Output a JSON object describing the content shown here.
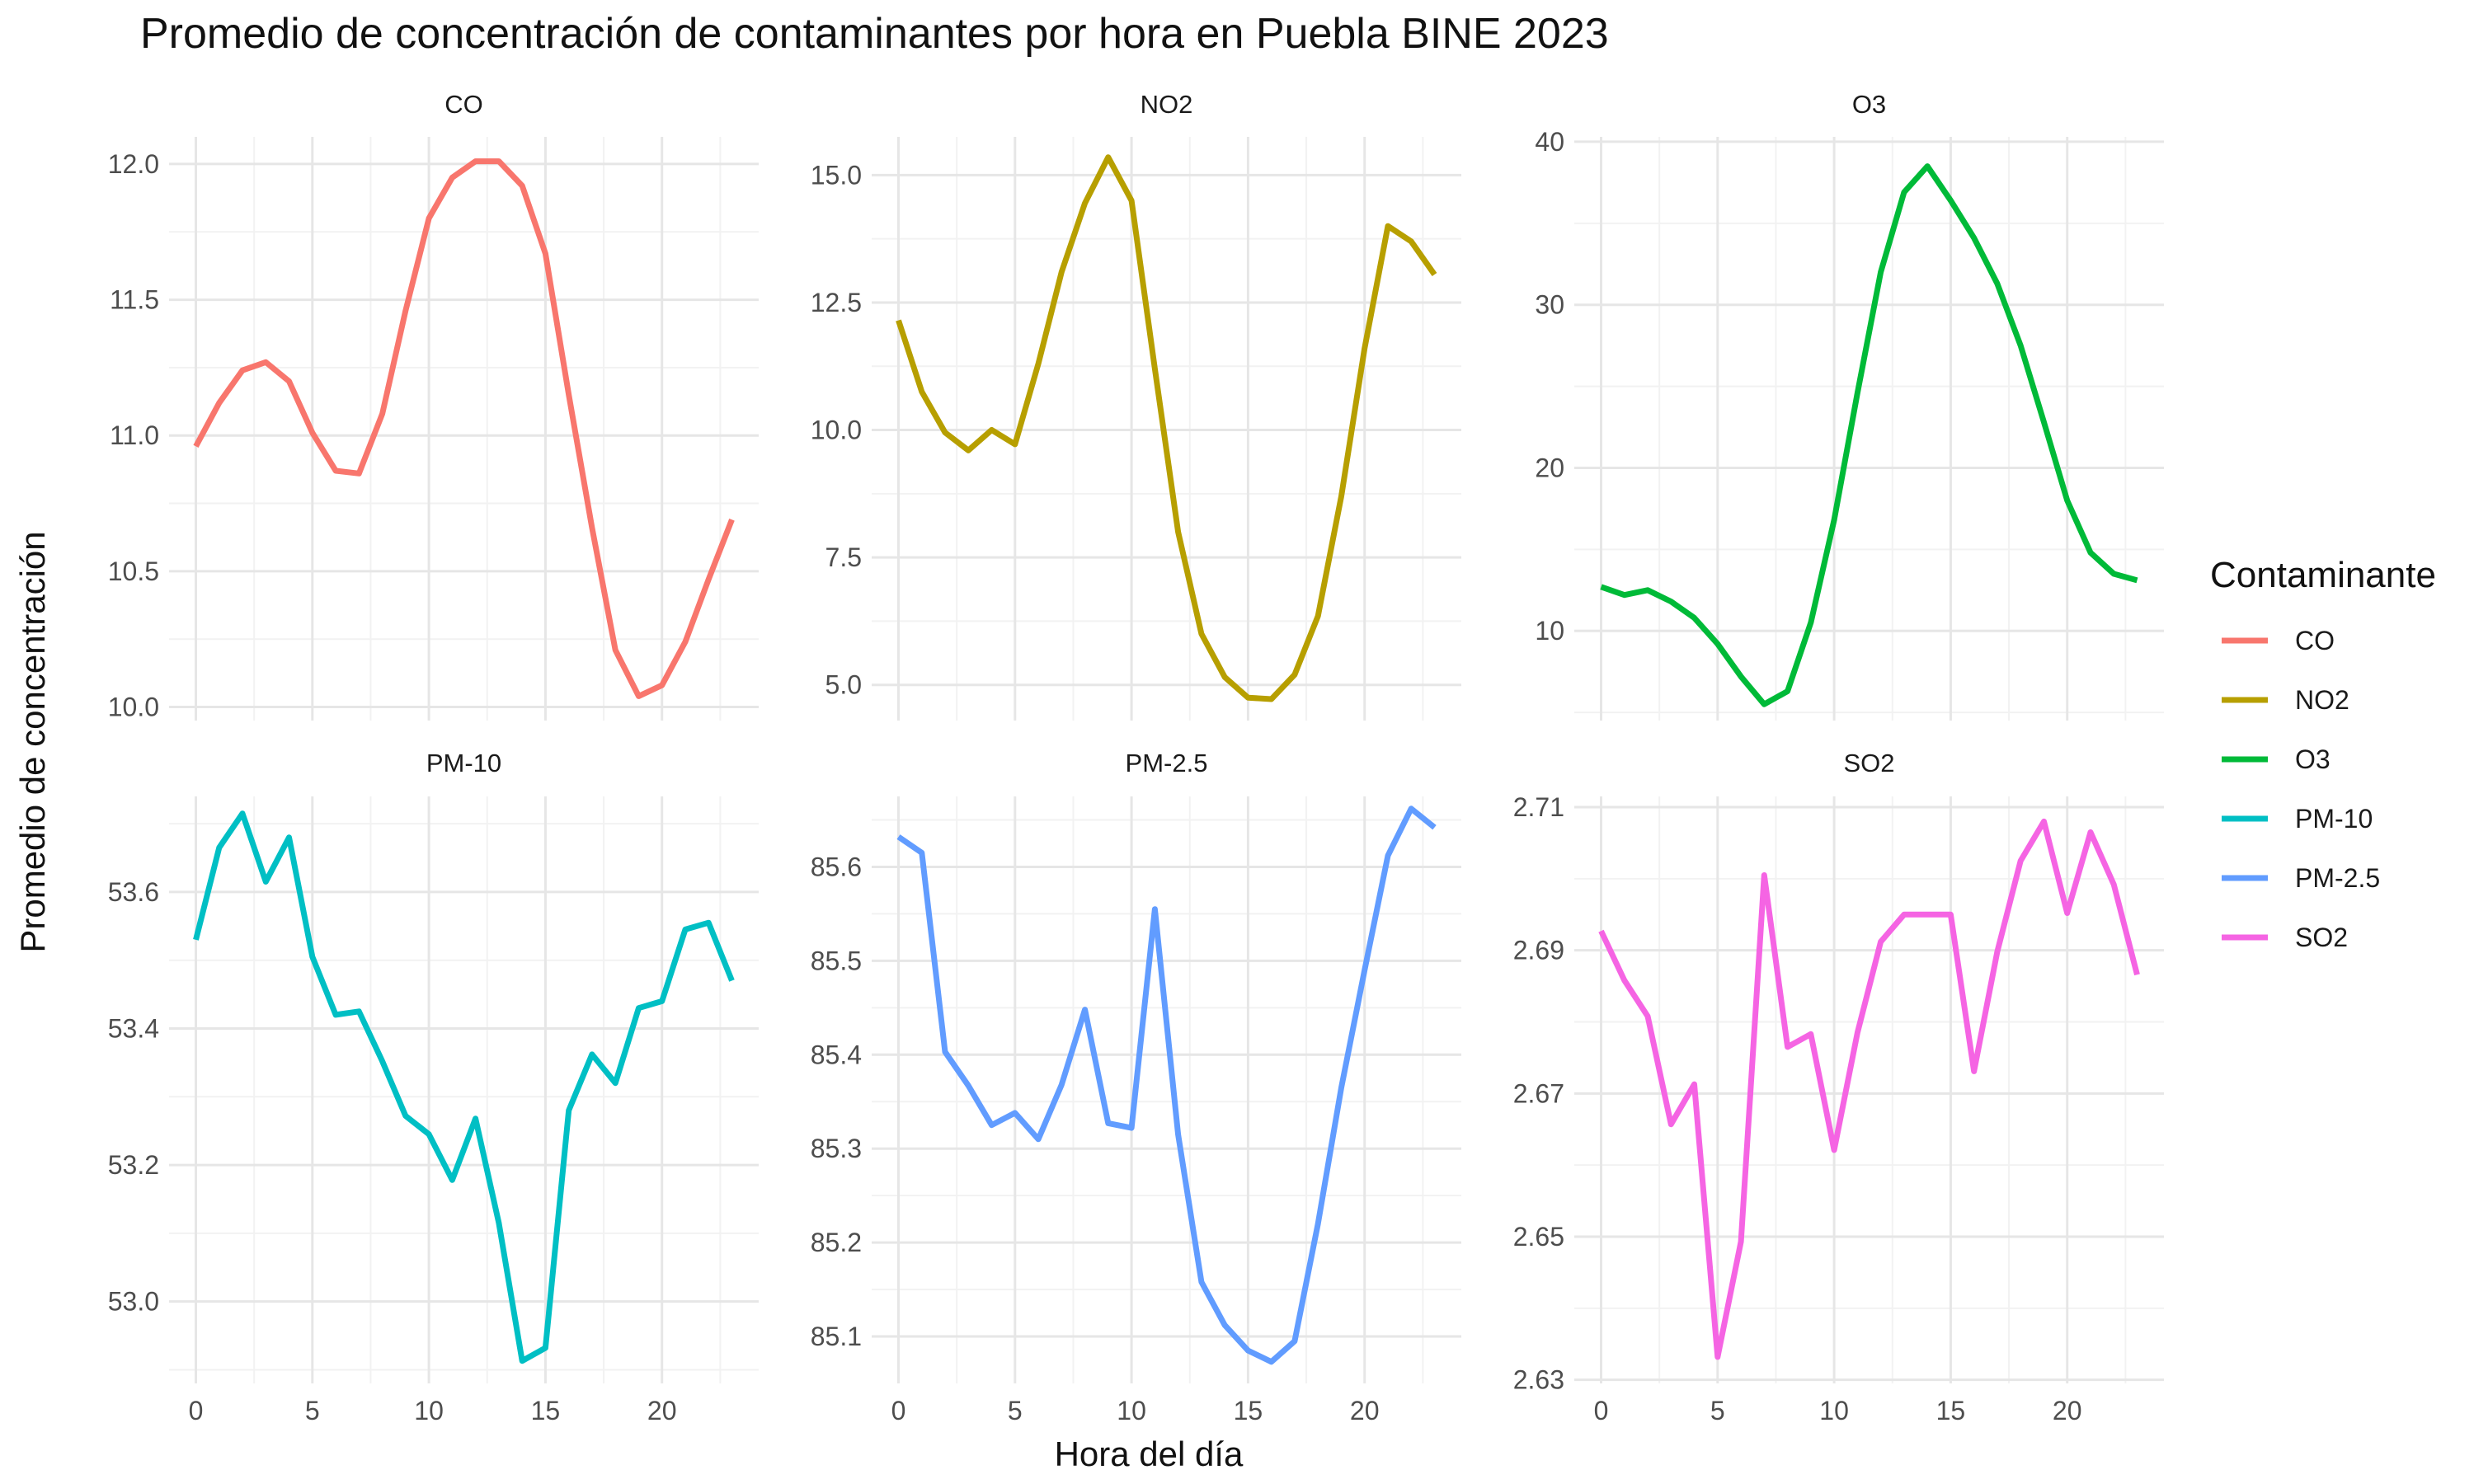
{
  "chart_data": {
    "type": "line",
    "title": "Promedio de concentración de contaminantes por hora en Puebla BINE 2023",
    "xlabel": "Hora del día",
    "ylabel": "Promedio de concentración",
    "grid": true,
    "legend": {
      "title": "Contaminante",
      "placement": "right"
    },
    "x_ticks": [
      0,
      5,
      10,
      15,
      20
    ],
    "xlim": [
      -1.15,
      24.15
    ],
    "x": [
      0,
      1,
      2,
      3,
      4,
      5,
      6,
      7,
      8,
      9,
      10,
      11,
      12,
      13,
      14,
      15,
      16,
      17,
      18,
      19,
      20,
      21,
      22,
      23
    ],
    "panels": [
      {
        "name": "CO",
        "color": "#F8766D",
        "ylim": [
          9.95,
          12.1
        ],
        "y_ticks": [
          10.0,
          10.5,
          11.0,
          11.5,
          12.0
        ],
        "y_tick_labels": [
          "10.0",
          "10.5",
          "11.0",
          "11.5",
          "12.0"
        ],
        "values": [
          10.96,
          11.12,
          11.24,
          11.27,
          11.2,
          11.01,
          10.87,
          10.86,
          11.08,
          11.46,
          11.8,
          11.95,
          12.01,
          12.01,
          11.92,
          11.67,
          11.15,
          10.66,
          10.21,
          10.04,
          10.08,
          10.24,
          10.47,
          10.69
        ]
      },
      {
        "name": "NO2",
        "color": "#B79F00",
        "ylim": [
          4.3,
          15.75
        ],
        "y_ticks": [
          5.0,
          7.5,
          10.0,
          12.5,
          15.0
        ],
        "y_tick_labels": [
          "5.0",
          "7.5",
          "10.0",
          "12.5",
          "15.0"
        ],
        "values": [
          12.15,
          10.75,
          9.95,
          9.6,
          10.0,
          9.72,
          11.3,
          13.1,
          14.45,
          15.35,
          14.5,
          11.2,
          8.0,
          6.0,
          5.15,
          4.75,
          4.72,
          5.2,
          6.35,
          8.7,
          11.6,
          14.0,
          13.7,
          13.05
        ]
      },
      {
        "name": "O3",
        "color": "#00BA38",
        "ylim": [
          4.5,
          40.3
        ],
        "y_ticks": [
          10,
          20,
          30,
          40
        ],
        "y_tick_labels": [
          "10",
          "20",
          "30",
          "40"
        ],
        "values": [
          12.7,
          12.2,
          12.5,
          11.8,
          10.8,
          9.2,
          7.2,
          5.5,
          6.3,
          10.5,
          16.8,
          24.6,
          32.0,
          36.9,
          38.5,
          36.4,
          34.1,
          31.3,
          27.5,
          22.8,
          18.0,
          14.8,
          13.5,
          13.1
        ]
      },
      {
        "name": "PM-10",
        "color": "#00BFC4",
        "ylim": [
          52.88,
          53.74
        ],
        "y_ticks": [
          53.0,
          53.2,
          53.4,
          53.6
        ],
        "y_tick_labels": [
          "53.0",
          "53.2",
          "53.4",
          "53.6"
        ],
        "values": [
          53.53,
          53.665,
          53.715,
          53.615,
          53.68,
          53.505,
          53.42,
          53.425,
          53.352,
          53.272,
          53.245,
          53.178,
          53.268,
          53.115,
          52.913,
          52.932,
          53.28,
          53.362,
          53.32,
          53.43,
          53.44,
          53.545,
          53.555,
          53.47
        ]
      },
      {
        "name": "PM-2.5",
        "color": "#619CFF",
        "ylim": [
          85.05,
          85.675
        ],
        "y_ticks": [
          85.1,
          85.2,
          85.3,
          85.4,
          85.5,
          85.6
        ],
        "y_tick_labels": [
          "85.1",
          "85.2",
          "85.3",
          "85.4",
          "85.5",
          "85.6"
        ],
        "values": [
          85.632,
          85.615,
          85.403,
          85.367,
          85.325,
          85.338,
          85.31,
          85.368,
          85.448,
          85.327,
          85.322,
          85.555,
          85.315,
          85.158,
          85.112,
          85.085,
          85.073,
          85.095,
          85.22,
          85.365,
          85.49,
          85.612,
          85.662,
          85.642
        ]
      },
      {
        "name": "SO2",
        "color": "#F564E3",
        "ylim": [
          2.6295,
          2.7115
        ],
        "y_ticks": [
          2.63,
          2.65,
          2.67,
          2.69,
          2.71
        ],
        "y_tick_labels": [
          "2.63",
          "2.65",
          "2.67",
          "2.69",
          "2.71"
        ],
        "values": [
          2.6927,
          2.6858,
          2.6808,
          2.6657,
          2.6713,
          2.6332,
          2.6493,
          2.7005,
          2.6765,
          2.6783,
          2.6621,
          2.6785,
          2.6912,
          2.695,
          2.695,
          2.695,
          2.6731,
          2.6898,
          2.7025,
          2.708,
          2.6952,
          2.7065,
          2.6992,
          2.6866
        ]
      }
    ]
  }
}
